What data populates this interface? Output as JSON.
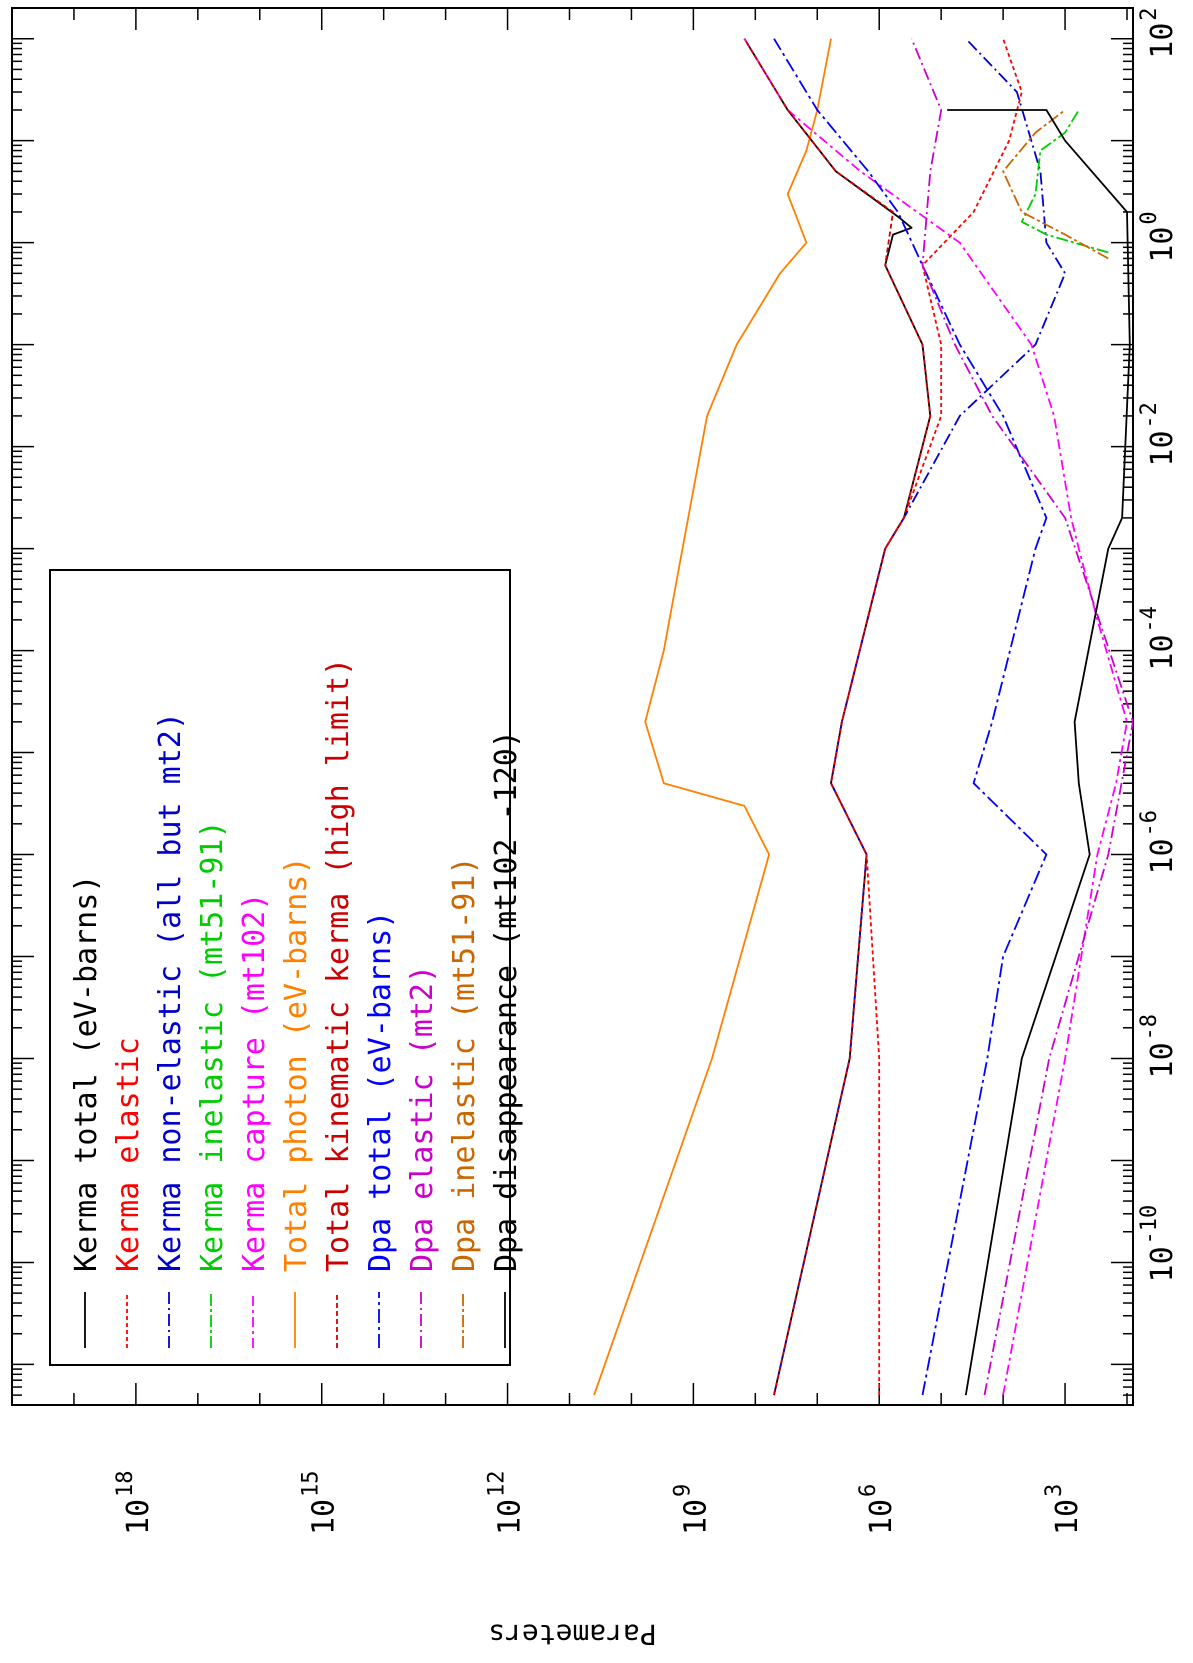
{
  "chart_data": {
    "type": "line",
    "orientation": "rotated-90-clockwise",
    "xscale": "log",
    "yscale": "log",
    "xlabel": "",
    "ylabel": "Parameters",
    "xlim": [
      4e-12,
      200
    ],
    "ylim": [
      80,
      1e+20
    ],
    "x_ticks": [
      {
        "value": 1e-10,
        "base": "10",
        "exp": "-10"
      },
      {
        "value": 1e-08,
        "base": "10",
        "exp": "-8"
      },
      {
        "value": 1e-06,
        "base": "10",
        "exp": "-6"
      },
      {
        "value": 0.0001,
        "base": "10",
        "exp": "-4"
      },
      {
        "value": 0.01,
        "base": "10",
        "exp": "-2"
      },
      {
        "value": 1,
        "base": "10",
        "exp": "0"
      },
      {
        "value": 100,
        "base": "10",
        "exp": "2"
      }
    ],
    "y_ticks": [
      {
        "value": 1000.0,
        "base": "10",
        "exp": "3"
      },
      {
        "value": 1000000.0,
        "base": "10",
        "exp": "6"
      },
      {
        "value": 1000000000.0,
        "base": "10",
        "exp": "9"
      },
      {
        "value": 1000000000000.0,
        "base": "10",
        "exp": "12"
      },
      {
        "value": 1000000000000000.0,
        "base": "10",
        "exp": "15"
      },
      {
        "value": 1e+18,
        "base": "10",
        "exp": "18"
      }
    ],
    "grid": false,
    "legend_placement": "upper-left (rotated)",
    "series": [
      {
        "name": "Kerma total  (eV-barns)",
        "color": "#000000",
        "dash": "solid",
        "points": [
          [
            5e-12,
            50000000.0
          ],
          [
            1e-08,
            3000000.0
          ],
          [
            1e-06,
            1600000.0
          ],
          [
            5e-06,
            6000000.0
          ],
          [
            2e-05,
            4000000.0
          ],
          [
            0.001,
            800000.0
          ],
          [
            0.002,
            400000.0
          ],
          [
            0.02,
            150000.0
          ],
          [
            0.1,
            200000.0
          ],
          [
            0.6,
            800000.0
          ],
          [
            1.2,
            600000.0
          ],
          [
            1.4,
            300000.0
          ],
          [
            1.8,
            500000.0
          ],
          [
            5,
            5000000.0
          ],
          [
            20,
            30000000.0
          ],
          [
            100,
            150000000.0
          ]
        ]
      },
      {
        "name": "Kerma elastic",
        "color": "#ff0000",
        "dash": "4,3",
        "points": [
          [
            5e-12,
            1000000.0
          ],
          [
            1e-08,
            1000000.0
          ],
          [
            1e-06,
            1600000.0
          ],
          [
            5e-06,
            6000000.0
          ],
          [
            2e-05,
            4000000.0
          ],
          [
            0.001,
            800000.0
          ],
          [
            0.002,
            400000.0
          ],
          [
            0.02,
            100000.0
          ],
          [
            0.1,
            100000.0
          ],
          [
            0.6,
            200000.0
          ],
          [
            2,
            30000.0
          ],
          [
            10,
            8000.0
          ],
          [
            30,
            5000.0
          ],
          [
            100,
            10000.0
          ]
        ]
      },
      {
        "name": "Kerma non-elastic (all but mt2)",
        "color": "#0000cc",
        "dash": "12,4,2,4",
        "points": [
          [
            5e-12,
            50000000.0
          ],
          [
            1e-08,
            3000000.0
          ],
          [
            1e-06,
            1600000.0
          ],
          [
            5e-06,
            6000000.0
          ],
          [
            2e-05,
            4000000.0
          ],
          [
            0.001,
            800000.0
          ],
          [
            0.002,
            400000.0
          ],
          [
            0.02,
            50000.0
          ],
          [
            0.1,
            3000.0
          ],
          [
            0.5,
            1000.0
          ],
          [
            1,
            2000.0
          ],
          [
            5,
            2500.0
          ],
          [
            30,
            6000.0
          ],
          [
            100,
            40000.0
          ]
        ]
      },
      {
        "name": "Kerma inelastic (mt51-91)",
        "color": "#00cc00",
        "dash": "12,3,3,3",
        "points": [
          [
            0.8,
            200
          ],
          [
            1.2,
            2000
          ],
          [
            1.6,
            5000
          ],
          [
            3,
            3000.0
          ],
          [
            8,
            2500.0
          ],
          [
            12,
            1000.0
          ],
          [
            20,
            600
          ]
        ]
      },
      {
        "name": "Kerma capture (mt102)",
        "color": "#ff00ff",
        "dash": "10,4,3,4",
        "points": [
          [
            5e-12,
            10000.0
          ],
          [
            1e-08,
            1000.0
          ],
          [
            1e-06,
            300
          ],
          [
            5e-06,
            150
          ],
          [
            2e-05,
            100
          ],
          [
            0.0002,
            300
          ],
          [
            0.001,
            600
          ],
          [
            0.002,
            800
          ],
          [
            0.02,
            1500
          ],
          [
            0.1,
            3500
          ],
          [
            1,
            50000.0
          ],
          [
            5,
            2000000.0
          ],
          [
            20,
            30000000.0
          ],
          [
            100,
            150000000.0
          ]
        ]
      },
      {
        "name": "Total photon (eV-barns)",
        "color": "#ff8000",
        "dash": "solid",
        "points": [
          [
            5e-12,
            40000000000.0
          ],
          [
            1e-08,
            500000000.0
          ],
          [
            1e-06,
            60000000.0
          ],
          [
            3e-06,
            150000000.0
          ],
          [
            5e-06,
            3000000000.0
          ],
          [
            2e-05,
            6000000000.0
          ],
          [
            0.0001,
            3000000000.0
          ],
          [
            0.001,
            1500000000.0
          ],
          [
            0.02,
            600000000.0
          ],
          [
            0.1,
            200000000.0
          ],
          [
            0.5,
            40000000.0
          ],
          [
            1,
            15000000.0
          ],
          [
            3,
            30000000.0
          ],
          [
            8,
            15000000.0
          ],
          [
            20,
            10000000.0
          ],
          [
            100,
            6000000.0
          ]
        ]
      },
      {
        "name": "Total kinematic kerma (high limit)",
        "color": "#cc0000",
        "dash": "5,3",
        "points": [
          [
            5e-12,
            50000000.0
          ],
          [
            1e-08,
            3000000.0
          ],
          [
            1e-06,
            1600000.0
          ],
          [
            5e-06,
            6000000.0
          ],
          [
            2e-05,
            4000000.0
          ],
          [
            0.001,
            800000.0
          ],
          [
            0.002,
            400000.0
          ],
          [
            0.02,
            150000.0
          ],
          [
            0.1,
            200000.0
          ],
          [
            0.6,
            800000.0
          ],
          [
            2,
            600000.0
          ],
          [
            5,
            5000000.0
          ],
          [
            20,
            30000000.0
          ],
          [
            100,
            150000000.0
          ]
        ]
      },
      {
        "name": "Dpa total (eV-barns)",
        "color": "#0000ff",
        "dash": "14,4,3,4",
        "points": [
          [
            5e-12,
            200000.0
          ],
          [
            1e-08,
            18000.0
          ],
          [
            1e-07,
            10000.0
          ],
          [
            1e-06,
            2000.0
          ],
          [
            5e-06,
            30000.0
          ],
          [
            2e-05,
            15000.0
          ],
          [
            0.001,
            3000.0
          ],
          [
            0.002,
            2000.0
          ],
          [
            0.02,
            10000.0
          ],
          [
            0.1,
            50000.0
          ],
          [
            0.6,
            200000.0
          ],
          [
            2,
            500000.0
          ],
          [
            5,
            1500000.0
          ],
          [
            20,
            10000000.0
          ],
          [
            100,
            50000000.0
          ]
        ]
      },
      {
        "name": "Dpa elastic (mt2)",
        "color": "#cc00cc",
        "dash": "12,4,2,4",
        "points": [
          [
            5e-12,
            20000.0
          ],
          [
            1e-08,
            1800.0
          ],
          [
            1e-06,
            200
          ],
          [
            2e-05,
            80
          ],
          [
            0.002,
            1000
          ],
          [
            0.02,
            15000.0
          ],
          [
            0.1,
            60000.0
          ],
          [
            0.6,
            200000.0
          ],
          [
            5,
            150000.0
          ],
          [
            20,
            100000.0
          ],
          [
            100,
            300000.0
          ]
        ]
      },
      {
        "name": "Dpa inelastic (mt51-91)",
        "color": "#cc6600",
        "dash": "12,3,3,3",
        "points": [
          [
            0.7,
            200
          ],
          [
            1.2,
            1000
          ],
          [
            2,
            5000
          ],
          [
            5,
            10000.0
          ],
          [
            12,
            3000.0
          ],
          [
            20,
            1000
          ]
        ]
      },
      {
        "name": "Dpa disappearance (mt102 -120)",
        "color": "#000000",
        "dash": "solid",
        "points": [
          [
            5e-12,
            40000.0
          ],
          [
            1e-08,
            5000.0
          ],
          [
            1e-06,
            400
          ],
          [
            5e-06,
            600
          ],
          [
            2e-05,
            700
          ],
          [
            0.001,
            200
          ],
          [
            0.002,
            120
          ],
          [
            0.1,
            90
          ],
          [
            2,
            100
          ],
          [
            10,
            1000.0
          ],
          [
            20,
            2000.0
          ],
          [
            20,
            80000.0
          ]
        ]
      }
    ]
  }
}
